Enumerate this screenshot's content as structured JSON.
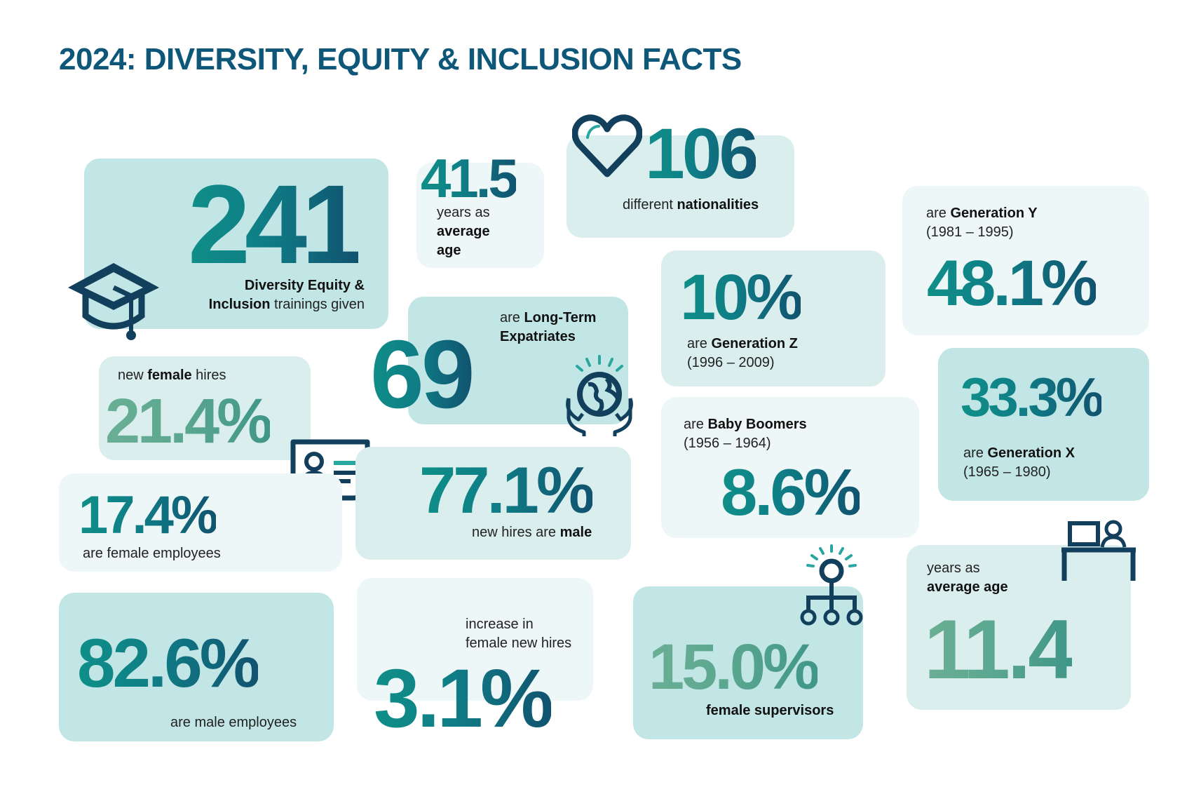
{
  "title": "2024: DIVERSITY, EQUITY & INCLUSION FACTS",
  "colors": {
    "title": "#0f5778",
    "teal": "#0f8f88",
    "navy": "#11536f",
    "icon": "#123f5c",
    "card_dark": "#c2e5e5",
    "card_mid": "#dbeeee",
    "card_light": "#eef7f7"
  },
  "icons": [
    "graduation-cap-icon",
    "heart-icon",
    "globe-hands-icon",
    "id-card-icon",
    "org-chart-icon",
    "desk-person-icon"
  ],
  "trainings": {
    "value": "241",
    "l1": "Diversity Equity &",
    "l2b": "Inclusion",
    "l2": " trainings given"
  },
  "avg_age": {
    "value": "41.5",
    "l1": "years as",
    "l2": "average",
    "l3": "age"
  },
  "nationalities": {
    "value": "106",
    "pre": "different ",
    "bold": "nationalities"
  },
  "gen_y": {
    "pre": "are ",
    "bold": "Generation Y",
    "years": "(1981 – 1995)",
    "value": "48.1%"
  },
  "expats": {
    "value": "69",
    "pre": "are ",
    "bold1": "Long-Term",
    "bold2": "Expatriates"
  },
  "gen_z": {
    "value": "10%",
    "pre": "are ",
    "bold": "Generation Z",
    "years": "(1996 – 2009)"
  },
  "female_hires": {
    "pre": "new ",
    "bold": "female",
    "post": " hires",
    "value": "21.4%"
  },
  "gen_x": {
    "value": "33.3%",
    "pre": "are ",
    "bold": "Generation X",
    "years": "(1965 – 1980)"
  },
  "boomers": {
    "pre": "are ",
    "bold": "Baby Boomers",
    "years": "(1956 – 1964)",
    "value": "8.6%"
  },
  "male_hires": {
    "value": "77.1%",
    "pre": "new hires are ",
    "bold": "male"
  },
  "female_employees": {
    "value": "17.4%",
    "label": "are female employees"
  },
  "service": {
    "l1": "years as",
    "l2": "average age",
    "value": "11.4"
  },
  "male_employees": {
    "value": "82.6%",
    "label": "are male employees"
  },
  "increase": {
    "l1": "increase in",
    "l2": "female new hires",
    "value": "3.1%"
  },
  "supervisors": {
    "value": "15.0%",
    "bold": "female supervisors"
  }
}
